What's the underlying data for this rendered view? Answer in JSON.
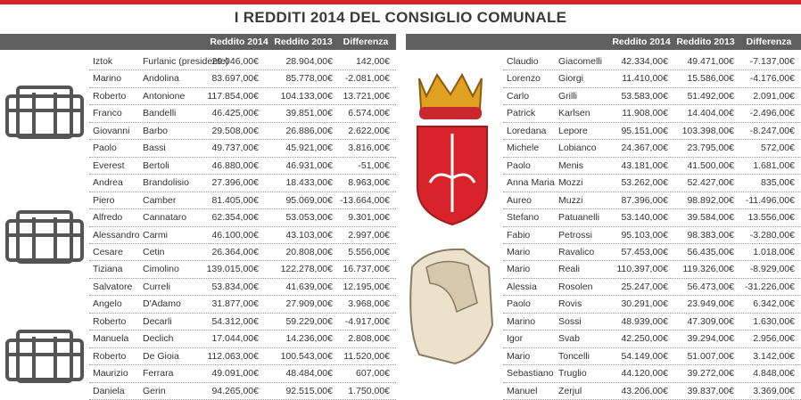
{
  "title": "I REDDITI 2014 DEL CONSIGLIO COMUNALE",
  "tables": [
    {
      "header": [
        "Reddito 2014",
        "Reddito 2013",
        "Differenza"
      ],
      "rows": [
        [
          "Iztok",
          "Furlanic (presidente)",
          "29.046,00€",
          "28.904,00€",
          "142,00€"
        ],
        [
          "Marino",
          "Andolina",
          "83.697,00€",
          "85.778,00€",
          "-2.081,00€"
        ],
        [
          "Roberto",
          "Antonione",
          "117.854,00€",
          "104.133,00€",
          "13.721,00€"
        ],
        [
          "Franco",
          "Bandelli",
          "46.425,00€",
          "39.851,00€",
          "6.574,00€"
        ],
        [
          "Giovanni",
          "Barbo",
          "29.508,00€",
          "26.886,00€",
          "2.622,00€"
        ],
        [
          "Paolo",
          "Bassi",
          "49.737,00€",
          "45.921,00€",
          "3.816,00€"
        ],
        [
          "Everest",
          "Bertoli",
          "46.880,00€",
          "46.931,00€",
          "-51,00€"
        ],
        [
          "Andrea",
          "Brandolisio",
          "27.396,00€",
          "18.433,00€",
          "8.963,00€"
        ],
        [
          "Piero",
          "Camber",
          "81.405,00€",
          "95.069,00€",
          "-13.664,00€"
        ],
        [
          "Alfredo",
          "Cannataro",
          "62.354,00€",
          "53.053,00€",
          "9.301,00€"
        ],
        [
          "Alessandro",
          "Carmi",
          "46.100,00€",
          "43.103,00€",
          "2.997,00€"
        ],
        [
          "Cesare",
          "Cetin",
          "26.364,00€",
          "20.808,00€",
          "5.556,00€"
        ],
        [
          "Tiziana",
          "Cimolino",
          "139.015,00€",
          "122.278,00€",
          "16.737,00€"
        ],
        [
          "Salvatore",
          "Curreli",
          "53.834,00€",
          "41.639,00€",
          "12.195,00€"
        ],
        [
          "Angelo",
          "D'Adamo",
          "31.877,00€",
          "27.909,00€",
          "3.968,00€"
        ],
        [
          "Roberto",
          "Decarli",
          "54.312,00€",
          "59.229,00€",
          "-4.917,00€"
        ],
        [
          "Manuela",
          "Declich",
          "17.044,00€",
          "14.236,00€",
          "2.808,00€"
        ],
        [
          "Roberto",
          "De Gioia",
          "112.063,00€",
          "100.543,00€",
          "11.520,00€"
        ],
        [
          "Maurizio",
          "Ferrara",
          "49.091,00€",
          "48.484,00€",
          "607,00€"
        ],
        [
          "Daniela",
          "Gerin",
          "94.265,00€",
          "92.515,00€",
          "1.750,00€"
        ]
      ]
    },
    {
      "header": [
        "Reddito 2014",
        "Reddito 2013",
        "Differenza"
      ],
      "rows": [
        [
          "Claudio",
          "Giacomelli",
          "42.334,00€",
          "49.471,00€",
          "-7.137,00€"
        ],
        [
          "Lorenzo",
          "Giorgi",
          "11.410,00€",
          "15.586,00€",
          "-4.176,00€"
        ],
        [
          "Carlo",
          "Grilli",
          "53.583,00€",
          "51.492,00€",
          "2.091,00€"
        ],
        [
          "Patrick",
          "Karlsen",
          "11.908,00€",
          "14.404,00€",
          "-2.496,00€"
        ],
        [
          "Loredana",
          "Lepore",
          "95.151,00€",
          "103.398,00€",
          "-8.247,00€"
        ],
        [
          "Michele",
          "Lobianco",
          "24.367,00€",
          "23.795,00€",
          "572,00€"
        ],
        [
          "Paolo",
          "Menis",
          "43.181,00€",
          "41.500,00€",
          "1.681,00€"
        ],
        [
          "Anna Maria",
          "Mozzi",
          "53.262,00€",
          "52.427,00€",
          "835,00€"
        ],
        [
          "Aureo",
          "Muzzi",
          "87.396,00€",
          "98.892,00€",
          "-11.496,00€"
        ],
        [
          "Stefano",
          "Patuanelli",
          "53.140,00€",
          "39.584,00€",
          "13.556,00€"
        ],
        [
          "Fabio",
          "Petrossi",
          "95.103,00€",
          "98.383,00€",
          "-3.280,00€"
        ],
        [
          "Mario",
          "Ravalico",
          "57.453,00€",
          "56.435,00€",
          "1.018,00€"
        ],
        [
          "Mario",
          "Reali",
          "110.397,00€",
          "119.326,00€",
          "-8.929,00€"
        ],
        [
          "Alessia",
          "Rosolen",
          "25.247,00€",
          "56.473,00€",
          "-31.226,00€"
        ],
        [
          "Paolo",
          "Rovis",
          "30.291,00€",
          "23.949,00€",
          "6.342,00€"
        ],
        [
          "Marino",
          "Sossi",
          "48.939,00€",
          "47.309,00€",
          "1.630,00€"
        ],
        [
          "Igor",
          "Svab",
          "42.250,00€",
          "39.294,00€",
          "2.956,00€"
        ],
        [
          "Mario",
          "Toncelli",
          "54.149,00€",
          "51.007,00€",
          "3.142,00€"
        ],
        [
          "Sebastiano",
          "Truglio",
          "44.120,00€",
          "39.272,00€",
          "4.848,00€"
        ],
        [
          "Manuel",
          "Zerjul",
          "43.206,00€",
          "39.837,00€",
          "3.369,00€"
        ]
      ]
    }
  ]
}
